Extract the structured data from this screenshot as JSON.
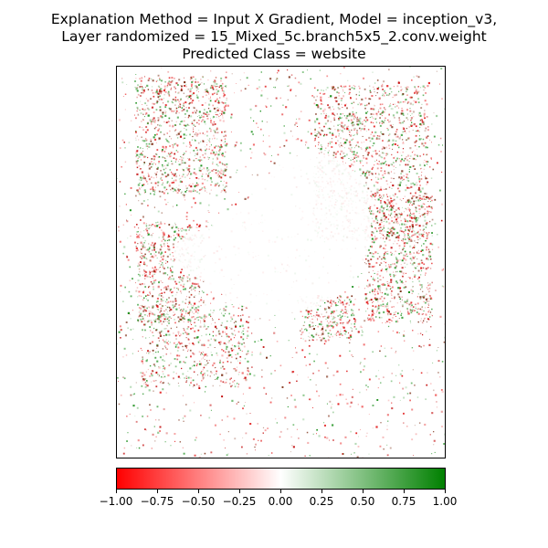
{
  "title": {
    "line1": "Explanation Method = Input X Gradient, Model = inception_v3,",
    "line2": "Layer randomized = 15_Mixed_5c.branch5x5_2.conv.weight",
    "line3": "Predicted Class = website"
  },
  "image": {
    "description_icon": "attribution-heatmap-bird-icon",
    "colors": {
      "negative": "#ff0000",
      "neutral": "#ffffff",
      "positive": "#008000"
    }
  },
  "colorbar": {
    "min": -1.0,
    "max": 1.0,
    "ticks": [
      "−1.00",
      "−0.75",
      "−0.50",
      "−0.25",
      "0.00",
      "0.25",
      "0.50",
      "0.75",
      "1.00"
    ],
    "tick_values": [
      -1.0,
      -0.75,
      -0.5,
      -0.25,
      0.0,
      0.25,
      0.5,
      0.75,
      1.0
    ]
  }
}
